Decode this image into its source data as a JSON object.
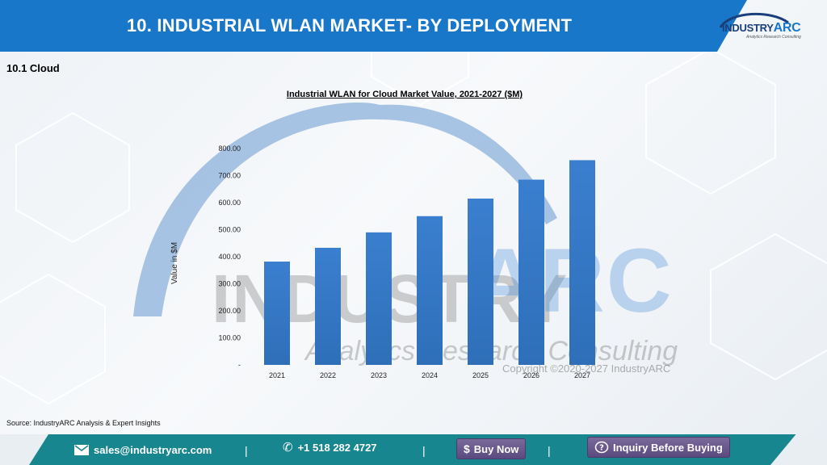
{
  "header": {
    "title": "10. INDUSTRIAL WLAN MARKET- BY DEPLOYMENT",
    "logo_main": "INDUSTRY",
    "logo_accent": "ARC",
    "logo_tagline": "Analytics Research Consulting"
  },
  "section": {
    "title": "10.1 Cloud"
  },
  "watermark": {
    "industry": "INDUSTRY",
    "arc": "ARC",
    "tagline": "Analytics Research Consulting",
    "copyright": "Copyright ©2020-2027 IndustryARC"
  },
  "chart_data": {
    "type": "bar",
    "title": "Industrial WLAN for Cloud Market Value, 2021-2027 ($M)",
    "ylabel": "Value in $M",
    "xlabel": "",
    "categories": [
      "2021",
      "2022",
      "2023",
      "2024",
      "2025",
      "2026",
      "2027"
    ],
    "values": [
      382,
      433,
      490,
      550,
      615,
      685,
      757
    ],
    "ylim": [
      0,
      800
    ],
    "yticks": [
      "-",
      "100.00",
      "200.00",
      "300.00",
      "400.00",
      "500.00",
      "600.00",
      "700.00",
      "800.00"
    ],
    "bar_color": "#2e6fb8",
    "grid": false,
    "legend": "none"
  },
  "source": "Source: IndustryARC Analysis & Expert Insights",
  "footer": {
    "email": "sales@industryarc.com",
    "phone": "+1 518 282 4727",
    "buy_now": "Buy Now",
    "inquiry": "Inquiry Before Buying",
    "separator": "|"
  }
}
